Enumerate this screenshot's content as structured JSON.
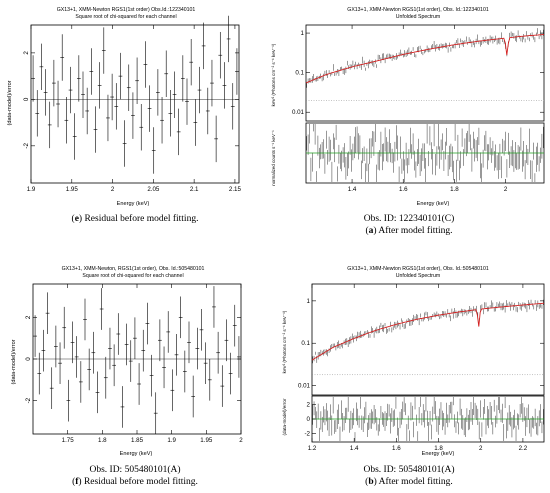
{
  "chart_data": [
    {
      "id": "e",
      "type": "scatter",
      "subtype": "residual-errorbars",
      "title": "GX13+1, XMM-Newton RGS1(1st order) Obs.Id.:122340101",
      "subtitle": "Square root of chi-squared for each channel",
      "xlabel": "Energy (keV)",
      "ylabel": "(data-model)/error",
      "xlim": [
        1.9,
        2.155
      ],
      "ylim": [
        -3.6,
        3.2
      ],
      "xticks": [
        "1.9",
        "1.95",
        "2",
        "2.05",
        "2.1",
        "2.15"
      ],
      "xtick_values": [
        1.9,
        1.95,
        2.0,
        2.05,
        2.1,
        2.15
      ],
      "yticks": [
        "-2",
        "0",
        "2"
      ],
      "ytick_values": [
        -2,
        0,
        2
      ],
      "residuals": [
        0.9,
        -0.6,
        1.4,
        0.3,
        -1.1,
        0.7,
        -0.2,
        1.8,
        -0.9,
        0.4,
        -1.6,
        0.9,
        0.2,
        -0.5,
        1.2,
        -1.3,
        0.6,
        2.1,
        -0.8,
        0.1,
        -0.3,
        1.0,
        -1.9,
        0.5,
        -0.7,
        0.8,
        -1.2,
        1.5,
        -0.4,
        -2.2,
        0.3,
        -0.9,
        1.1,
        -0.6,
        0.2,
        -1.4,
        0.9,
        -0.1,
        1.6,
        -1.0,
        0.4,
        2.3,
        -0.5,
        0.7,
        -1.7,
        1.9,
        0.6,
        2.6,
        -0.3,
        1.2
      ]
    },
    {
      "id": "a",
      "type": "line",
      "subtype": "unfolded-spectrum-with-residuals",
      "title": "GX13+1, XMM-Newton RGS1(1st order), Obs. Id.:122340101",
      "subtitle": "Unfolded Spectrum",
      "xlabel": "Energy (keV)",
      "ylabel": "keV² (Photons cm⁻² s⁻¹ keV⁻¹)",
      "ylabel_lower": "normalized counts s⁻¹ keV⁻¹",
      "xlim": [
        1.22,
        2.15
      ],
      "ylim": [
        0.006,
        1.6
      ],
      "yscale": "log",
      "xticks": [
        "1.4",
        "1.6",
        "1.8",
        "2"
      ],
      "xtick_values": [
        1.4,
        1.6,
        1.8,
        2.0
      ],
      "yticks": [
        "0.01",
        "0.1",
        "1"
      ],
      "ytick_values": [
        0.01,
        0.1,
        1
      ],
      "model_points": [
        [
          1.22,
          0.055
        ],
        [
          1.3,
          0.09
        ],
        [
          1.4,
          0.14
        ],
        [
          1.5,
          0.2
        ],
        [
          1.6,
          0.29
        ],
        [
          1.7,
          0.39
        ],
        [
          1.8,
          0.51
        ],
        [
          1.9,
          0.63
        ],
        [
          2.0,
          0.75
        ],
        [
          2.08,
          0.85
        ],
        [
          2.15,
          0.92
        ]
      ],
      "absorption_line_keV": 2.005,
      "background_level": 0.02
    },
    {
      "id": "f",
      "type": "scatter",
      "subtype": "residual-errorbars",
      "title": "GX13+1, XMM-Newton, RGS1(1st order), Obs. Id.:505480101",
      "subtitle": "Square root of chi-squared for each channel",
      "xlabel": "Energy (keV)",
      "ylabel": "(data-model)/error",
      "xlim": [
        1.7,
        2.0
      ],
      "ylim": [
        -3.6,
        3.6
      ],
      "xticks": [
        "1.75",
        "1.8",
        "1.85",
        "1.9",
        "1.95",
        "2"
      ],
      "xtick_values": [
        1.75,
        1.8,
        1.85,
        1.9,
        1.95,
        2.0
      ],
      "yticks": [
        "-2",
        "0",
        "2"
      ],
      "ytick_values": [
        -2,
        0,
        2
      ],
      "residuals": [
        1.1,
        -0.7,
        0.4,
        2.2,
        -1.4,
        0.6,
        -0.2,
        1.5,
        -2.0,
        0.8,
        0.1,
        -1.1,
        1.9,
        -0.5,
        0.3,
        -1.6,
        2.4,
        -0.9,
        0.5,
        -0.3,
        1.2,
        -2.3,
        0.7,
        -0.1,
        1.0,
        -1.2,
        0.4,
        1.7,
        -0.8,
        -2.6,
        0.9,
        -0.4,
        1.3,
        -1.5,
        0.2,
        2.0,
        -0.6,
        0.8,
        -1.8,
        0.5,
        1.4,
        -0.2,
        -1.0,
        2.5,
        0.3,
        -1.3,
        0.9,
        -0.7,
        1.6,
        0.1
      ]
    },
    {
      "id": "b",
      "type": "line",
      "subtype": "unfolded-spectrum-with-residuals",
      "title": "GX13+1, XMM-Newton RGS1(1st order), Obs. Id.:505480101",
      "subtitle": "Unfolded Spectrum",
      "xlabel": "Energy (keV)",
      "ylabel": "keV² (Photons cm⁻² s⁻¹ keV⁻¹)",
      "ylabel_lower": "(data-model)/error",
      "xlim": [
        1.2,
        2.3
      ],
      "ylim": [
        0.006,
        2.5
      ],
      "yscale": "log",
      "xticks": [
        "1.2",
        "1.4",
        "1.6",
        "1.8",
        "2",
        "2.2"
      ],
      "xtick_values": [
        1.2,
        1.4,
        1.6,
        1.8,
        2.0,
        2.2
      ],
      "yticks": [
        "0.01",
        "0.1",
        "1"
      ],
      "ytick_values": [
        0.01,
        0.1,
        1
      ],
      "lower_yticks": [
        "-2",
        "0",
        "2"
      ],
      "lower_ytick_values": [
        -2,
        0,
        2
      ],
      "model_points": [
        [
          1.2,
          0.04
        ],
        [
          1.3,
          0.08
        ],
        [
          1.4,
          0.13
        ],
        [
          1.5,
          0.2
        ],
        [
          1.6,
          0.28
        ],
        [
          1.7,
          0.37
        ],
        [
          1.8,
          0.46
        ],
        [
          1.9,
          0.55
        ],
        [
          2.0,
          0.64
        ],
        [
          2.1,
          0.72
        ],
        [
          2.2,
          0.8
        ],
        [
          2.3,
          0.88
        ]
      ],
      "absorption_line_keV": 1.99,
      "background_level": 0.018
    }
  ],
  "captions": {
    "e": {
      "letter": "e",
      "text": " Residual before model fitting."
    },
    "a": {
      "letter": "a",
      "text": " After model fitting."
    },
    "obs_top": "Obs. ID: 122340101(C)",
    "f": {
      "letter": "f",
      "text": " Residual before model fitting."
    },
    "b": {
      "letter": "b",
      "text": " After model fitting."
    },
    "obs_f": "Obs. ID: 505480101(A)",
    "obs_b": "Obs. ID: 505480101(A)"
  },
  "colors": {
    "model": "#d42020",
    "residual_zero": "#20a020",
    "data": "#000000",
    "grid": "#888888"
  }
}
